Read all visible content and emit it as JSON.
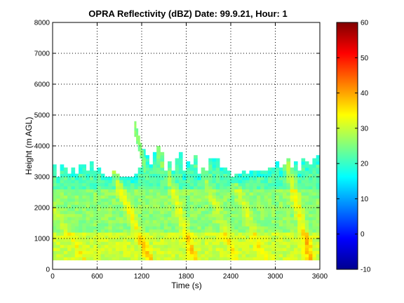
{
  "chart_data": {
    "type": "heatmap",
    "title": "OPRA Reflectivity (dBZ)  Date: 99.9.21, Hour: 1",
    "xlabel": "Time (s)",
    "ylabel": "Height (m AGL)",
    "xlim": [
      0,
      3600
    ],
    "ylim": [
      0,
      8000
    ],
    "x_ticks": [
      0,
      600,
      1200,
      1800,
      2400,
      3000,
      3600
    ],
    "y_ticks": [
      0,
      1000,
      2000,
      3000,
      4000,
      5000,
      6000,
      7000,
      8000
    ],
    "grid": true,
    "colormap": "jet",
    "colorbar": {
      "clim": [
        -10,
        60
      ],
      "ticks": [
        -10,
        0,
        10,
        20,
        30,
        40,
        50,
        60
      ]
    },
    "field": {
      "x_step_s": 50,
      "echo_base_m": 300,
      "echo_top_m": [
        3400,
        3000,
        3400,
        3300,
        3100,
        3250,
        3100,
        3350,
        3400,
        3200,
        3450,
        3150,
        3300,
        3100,
        3000,
        3000,
        3150,
        3100,
        3000,
        3000,
        3000,
        3000,
        3050,
        3300,
        3850,
        3650,
        3400,
        3750,
        4000,
        3750,
        3150,
        3450,
        3150,
        3600,
        3800,
        3150,
        3500,
        3400,
        3650,
        3100,
        3300,
        3200,
        3600,
        3550,
        3550,
        3300,
        3300,
        3200,
        3000,
        3050,
        3050,
        3150,
        3100,
        3200,
        3150,
        3200,
        3200,
        3200,
        3250,
        3300,
        3500,
        3250,
        3350,
        3600,
        3300,
        3450,
        3200,
        3600,
        3450,
        3400,
        3600,
        3650
      ],
      "plume": {
        "time_start_s": 1100,
        "time_end_s": 1250,
        "top_start_m": 4800,
        "top_end_m": 3400,
        "dbz": 25
      },
      "base_dbz": {
        "near_ground": 30,
        "mid_layer": 26,
        "upper_layer": 22
      },
      "streaks": [
        {
          "t0_s": 0,
          "slope_s_per_km": 250,
          "dbz": 4
        },
        {
          "t0_s": 500,
          "slope_s_per_km": 250,
          "dbz": 4
        },
        {
          "t0_s": 1350,
          "slope_s_per_km": 170,
          "dbz": 8
        },
        {
          "t0_s": 1950,
          "slope_s_per_km": 130,
          "dbz": 7
        },
        {
          "t0_s": 2500,
          "slope_s_per_km": 150,
          "dbz": 5
        },
        {
          "t0_s": 2900,
          "slope_s_per_km": 160,
          "dbz": 5
        },
        {
          "t0_s": 3500,
          "slope_s_per_km": 100,
          "dbz": 9
        }
      ]
    }
  }
}
